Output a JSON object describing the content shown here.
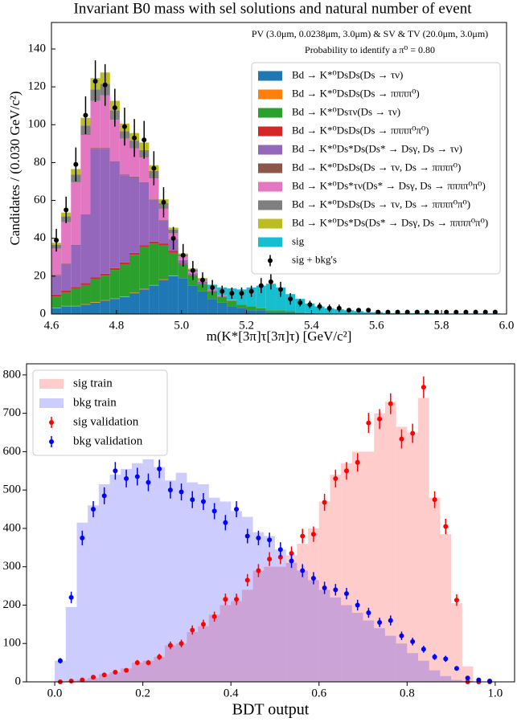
{
  "chart_data": [
    {
      "type": "histogram",
      "stacked": true,
      "title": "Invariant B0 mass with sel solutions and natural number of event",
      "annotations": [
        "PV (3.0μm, 0.0238μm, 3.0μm) & SV & TV (20.0μm, 3.0μm)",
        "Probability to identify a π⁰ = 0.80"
      ],
      "x_label": "m(K*[3π]τ[3π]τ) [GeV/c²]",
      "y_label": "Candidates / (0.030 GeV/c²)",
      "bins": [
        4.6,
        4.63,
        4.66,
        4.69,
        4.72,
        4.75,
        4.78,
        4.81,
        4.84,
        4.87,
        4.9,
        4.93,
        4.96,
        4.99,
        5.02,
        5.05,
        5.08,
        5.11,
        5.14,
        5.17,
        5.2,
        5.23,
        5.26,
        5.29,
        5.32,
        5.35,
        5.38,
        5.41,
        5.44,
        5.47,
        5.5,
        5.53,
        5.56,
        5.59,
        5.62,
        5.65,
        5.68,
        5.71,
        5.74,
        5.77,
        5.8,
        5.83,
        5.86,
        5.89,
        5.92,
        5.95,
        5.98
      ],
      "xlim": [
        4.6,
        6.0
      ],
      "xticks": [
        4.6,
        4.8,
        {
          "value": 5,
          "label": "5.0"
        },
        5.2,
        5.4,
        5.6,
        5.8,
        {
          "value": 6,
          "label": "6.0"
        }
      ],
      "ylim": [
        0,
        154
      ],
      "yticks": [
        0,
        20,
        40,
        60,
        80,
        100,
        120,
        140
      ],
      "grid": false,
      "legend": "upper right",
      "series": [
        {
          "name": "Bd → K*⁰DsDs(Ds → τν)",
          "color": "#1f77b4",
          "values": [
            3,
            4,
            4,
            5,
            6,
            7,
            8,
            9,
            11,
            13,
            15,
            18,
            20,
            19,
            15,
            12,
            8,
            6,
            4,
            3,
            2,
            2,
            1,
            1,
            1,
            0.5,
            0.5,
            0,
            0,
            0,
            0,
            0,
            0,
            0,
            0,
            0,
            0,
            0,
            0,
            0,
            0,
            0,
            0,
            0,
            0,
            0
          ]
        },
        {
          "name": "Bd → K*⁰DsDs(Ds → ππππ⁰)",
          "color": "#ff7f0e",
          "values": [
            0.3,
            0.3,
            0.3,
            0.3,
            0.3,
            0.3,
            0.3,
            0.3,
            0.3,
            0.3,
            0.3,
            0.3,
            0.3,
            0,
            0,
            0,
            0,
            0,
            0,
            0,
            0,
            0,
            0,
            0,
            0,
            0,
            0,
            0,
            0,
            0,
            0,
            0,
            0,
            0,
            0,
            0,
            0,
            0,
            0,
            0,
            0,
            0,
            0,
            0,
            0,
            0
          ]
        },
        {
          "name": "Bd → K*⁰Dsτν(Ds → τν)",
          "color": "#2ca02c",
          "values": [
            6,
            7,
            9,
            10,
            12,
            13,
            15,
            17,
            20,
            22,
            22,
            18,
            12,
            7,
            5,
            4,
            4,
            3,
            3,
            2,
            2,
            1,
            1,
            1,
            0.5,
            0.5,
            0,
            0,
            0,
            0,
            0,
            0,
            0,
            0,
            0,
            0,
            0,
            0,
            0,
            0,
            0,
            0,
            0,
            0,
            0,
            0
          ]
        },
        {
          "name": "Bd → K*⁰DsDs(Ds → ππππ⁰π⁰)",
          "color": "#d62728",
          "values": [
            1,
            1,
            1,
            1,
            1,
            1,
            1,
            1,
            1,
            1,
            1,
            1,
            1,
            0.5,
            0.5,
            0,
            0,
            0,
            0,
            0,
            0,
            0,
            0,
            0,
            0,
            0,
            0,
            0,
            0,
            0,
            0,
            0,
            0,
            0,
            0,
            0,
            0,
            0,
            0,
            0,
            0,
            0,
            0,
            0,
            0,
            0
          ]
        },
        {
          "name": "Bd → K*⁰Ds*Ds(Ds* → Dsγ, Ds → τν)",
          "color": "#9467bd",
          "values": [
            10,
            14,
            22,
            36,
            68,
            66,
            56,
            46,
            40,
            33,
            22,
            12,
            6,
            2,
            1,
            1,
            0.5,
            0.5,
            0,
            0,
            0,
            0,
            0,
            0,
            0,
            0,
            0,
            0,
            0,
            0,
            0,
            0,
            0,
            0,
            0,
            0,
            0,
            0,
            0,
            0,
            0,
            0,
            0,
            0,
            0,
            0
          ]
        },
        {
          "name": "Bd → K*⁰DsDs(Ds → τν, Ds → ππππ⁰)",
          "color": "#8c564b",
          "values": [
            0.3,
            0.3,
            0.3,
            0.3,
            0.3,
            0.3,
            0.3,
            0.3,
            0.3,
            0.3,
            0.3,
            0.3,
            0.3,
            0,
            0,
            0,
            0,
            0,
            0,
            0,
            0,
            0,
            0,
            0,
            0,
            0,
            0,
            0,
            0,
            0,
            0,
            0,
            0,
            0,
            0,
            0,
            0,
            0,
            0,
            0,
            0,
            0,
            0,
            0,
            0,
            0
          ]
        },
        {
          "name": "Bd → K*⁰Ds*τν(Ds* → Dsγ, Ds → ππππ⁰π⁰)",
          "color": "#e377c2",
          "values": [
            14,
            22,
            33,
            42,
            25,
            28,
            22,
            19,
            15,
            13,
            11,
            6,
            3,
            2,
            1,
            1,
            0.5,
            0.5,
            0.5,
            0,
            0,
            0,
            0,
            0,
            0,
            0,
            0,
            0,
            0,
            0,
            0,
            0,
            0,
            0,
            0,
            0,
            0,
            0,
            0,
            0,
            0,
            0,
            0,
            0,
            0,
            0
          ]
        },
        {
          "name": "Bd → K*⁰DsDs(Ds → τν, Ds → ππππ⁰π⁰)",
          "color": "#7f7f7f",
          "values": [
            2,
            3,
            4,
            5,
            6,
            6,
            5,
            4,
            4,
            4,
            4,
            3,
            2,
            1,
            1,
            0.5,
            0.5,
            0,
            0,
            0,
            0,
            0,
            0,
            0,
            0,
            0,
            0,
            0,
            0,
            0,
            0,
            0,
            0,
            0,
            0,
            0,
            0,
            0,
            0,
            0,
            0,
            0,
            0,
            0,
            0,
            0
          ]
        },
        {
          "name": "Bd → K*⁰Ds*Ds(Ds* → Dsγ, Ds → ππππ⁰π⁰)",
          "color": "#bcbd22",
          "values": [
            1,
            2,
            3,
            4,
            6,
            6,
            5,
            4,
            4,
            4,
            3,
            2,
            1,
            0.5,
            0.5,
            0.5,
            0,
            0,
            0,
            0,
            0,
            0,
            0,
            0,
            0,
            0,
            0,
            0,
            0,
            0,
            0,
            0,
            0,
            0,
            0,
            0,
            0,
            0,
            0,
            0,
            0,
            0,
            0,
            0,
            0,
            0
          ]
        },
        {
          "name": "sig",
          "color": "#17becf",
          "values": [
            0,
            0,
            0,
            0,
            0,
            0,
            0,
            0,
            0,
            0,
            0,
            0,
            0,
            0,
            0,
            0,
            2,
            4,
            6,
            8,
            10,
            12,
            14,
            12,
            9,
            7,
            5,
            4,
            3,
            2.5,
            2,
            1.5,
            1,
            1,
            0.5,
            0.5,
            0.5,
            0.5,
            0.5,
            0.3,
            0.3,
            0.3,
            0.3,
            0.3,
            0.3,
            0.3
          ]
        }
      ],
      "points": [
        {
          "name": "sig + bkg's",
          "color": "#000000",
          "values": [
            39,
            55,
            79,
            105,
            123,
            121,
            109,
            99,
            93,
            92,
            77,
            59,
            40,
            31,
            23,
            18,
            14,
            12,
            11,
            11,
            12,
            15,
            17,
            13,
            8,
            6,
            5,
            4,
            3,
            3,
            2,
            2,
            2,
            1,
            1,
            1,
            1,
            1,
            1,
            1,
            1,
            1,
            1,
            1,
            1,
            1
          ],
          "errors": [
            6,
            7,
            9,
            10,
            11,
            11,
            10,
            10,
            10,
            10,
            9,
            8,
            6,
            6,
            5,
            4,
            4,
            3,
            3,
            3,
            3,
            4,
            4,
            4,
            3,
            2,
            2,
            2,
            2,
            2,
            1,
            1,
            1,
            1,
            1,
            1,
            1,
            1,
            1,
            1,
            1,
            1,
            1,
            1,
            1,
            1
          ]
        }
      ]
    },
    {
      "type": "histogram",
      "stacked": false,
      "x_label": "BDT output",
      "bins": [
        0,
        0.025,
        0.05,
        0.075,
        0.1,
        0.125,
        0.15,
        0.175,
        0.2,
        0.225,
        0.25,
        0.275,
        0.3,
        0.325,
        0.35,
        0.375,
        0.4,
        0.425,
        0.45,
        0.475,
        0.5,
        0.525,
        0.55,
        0.575,
        0.6,
        0.625,
        0.65,
        0.675,
        0.7,
        0.725,
        0.75,
        0.775,
        0.8,
        0.825,
        0.85,
        0.875,
        0.9,
        0.925,
        0.95,
        0.975,
        1
      ],
      "xlim": [
        -0.064,
        1.044
      ],
      "xticks": [
        {
          "value": 0,
          "label": "0.0"
        },
        0.2,
        0.4,
        0.6,
        0.8,
        {
          "value": 1,
          "label": "1.0"
        }
      ],
      "ylim": [
        0,
        829
      ],
      "yticks": [
        0,
        100,
        200,
        300,
        400,
        500,
        600,
        700,
        800
      ],
      "grid": false,
      "legend": "upper left",
      "series": [
        {
          "name": "sig train",
          "color": "#ff0000",
          "values": [
            0,
            2,
            5,
            10,
            20,
            25,
            35,
            50,
            55,
            65,
            95,
            100,
            130,
            145,
            175,
            200,
            210,
            240,
            290,
            300,
            300,
            330,
            360,
            400,
            470,
            540,
            570,
            600,
            600,
            700,
            730,
            665,
            650,
            740,
            480,
            385,
            205,
            40,
            0,
            0
          ]
        },
        {
          "name": "bkg train",
          "color": "#0000ff",
          "values": [
            55,
            195,
            415,
            460,
            515,
            540,
            555,
            570,
            580,
            560,
            525,
            545,
            520,
            515,
            480,
            470,
            445,
            430,
            390,
            380,
            345,
            310,
            290,
            265,
            240,
            220,
            200,
            180,
            160,
            140,
            120,
            100,
            75,
            55,
            30,
            15,
            5,
            2,
            0,
            0
          ]
        }
      ],
      "points": [
        {
          "name": "sig validation",
          "color": "#ff0000",
          "values": [
            0,
            2,
            5,
            12,
            18,
            25,
            30,
            50,
            50,
            65,
            95,
            100,
            135,
            150,
            170,
            215,
            215,
            265,
            290,
            320,
            325,
            335,
            380,
            385,
            468,
            530,
            550,
            572,
            675,
            685,
            725,
            633,
            648,
            768,
            475,
            405,
            213,
            0,
            0,
            0
          ],
          "errors": [
            0,
            1,
            2,
            3,
            4,
            5,
            5,
            7,
            7,
            8,
            10,
            10,
            12,
            12,
            13,
            15,
            15,
            16,
            17,
            18,
            18,
            18,
            19,
            20,
            22,
            23,
            23,
            24,
            26,
            26,
            27,
            25,
            25,
            28,
            22,
            20,
            15,
            0,
            0,
            0
          ]
        },
        {
          "name": "bkg validation",
          "color": "#0000ff",
          "values": [
            55,
            220,
            375,
            450,
            485,
            550,
            530,
            535,
            520,
            555,
            500,
            495,
            475,
            470,
            445,
            415,
            450,
            380,
            375,
            370,
            345,
            315,
            290,
            270,
            245,
            240,
            230,
            200,
            180,
            155,
            160,
            120,
            105,
            85,
            65,
            60,
            35,
            10,
            5,
            2
          ],
          "errors": [
            7,
            15,
            19,
            21,
            22,
            23,
            23,
            23,
            23,
            24,
            22,
            22,
            22,
            22,
            21,
            20,
            21,
            19,
            19,
            19,
            19,
            18,
            17,
            16,
            16,
            15,
            15,
            14,
            13,
            12,
            13,
            11,
            10,
            9,
            8,
            8,
            6,
            3,
            2,
            1
          ]
        }
      ]
    }
  ]
}
